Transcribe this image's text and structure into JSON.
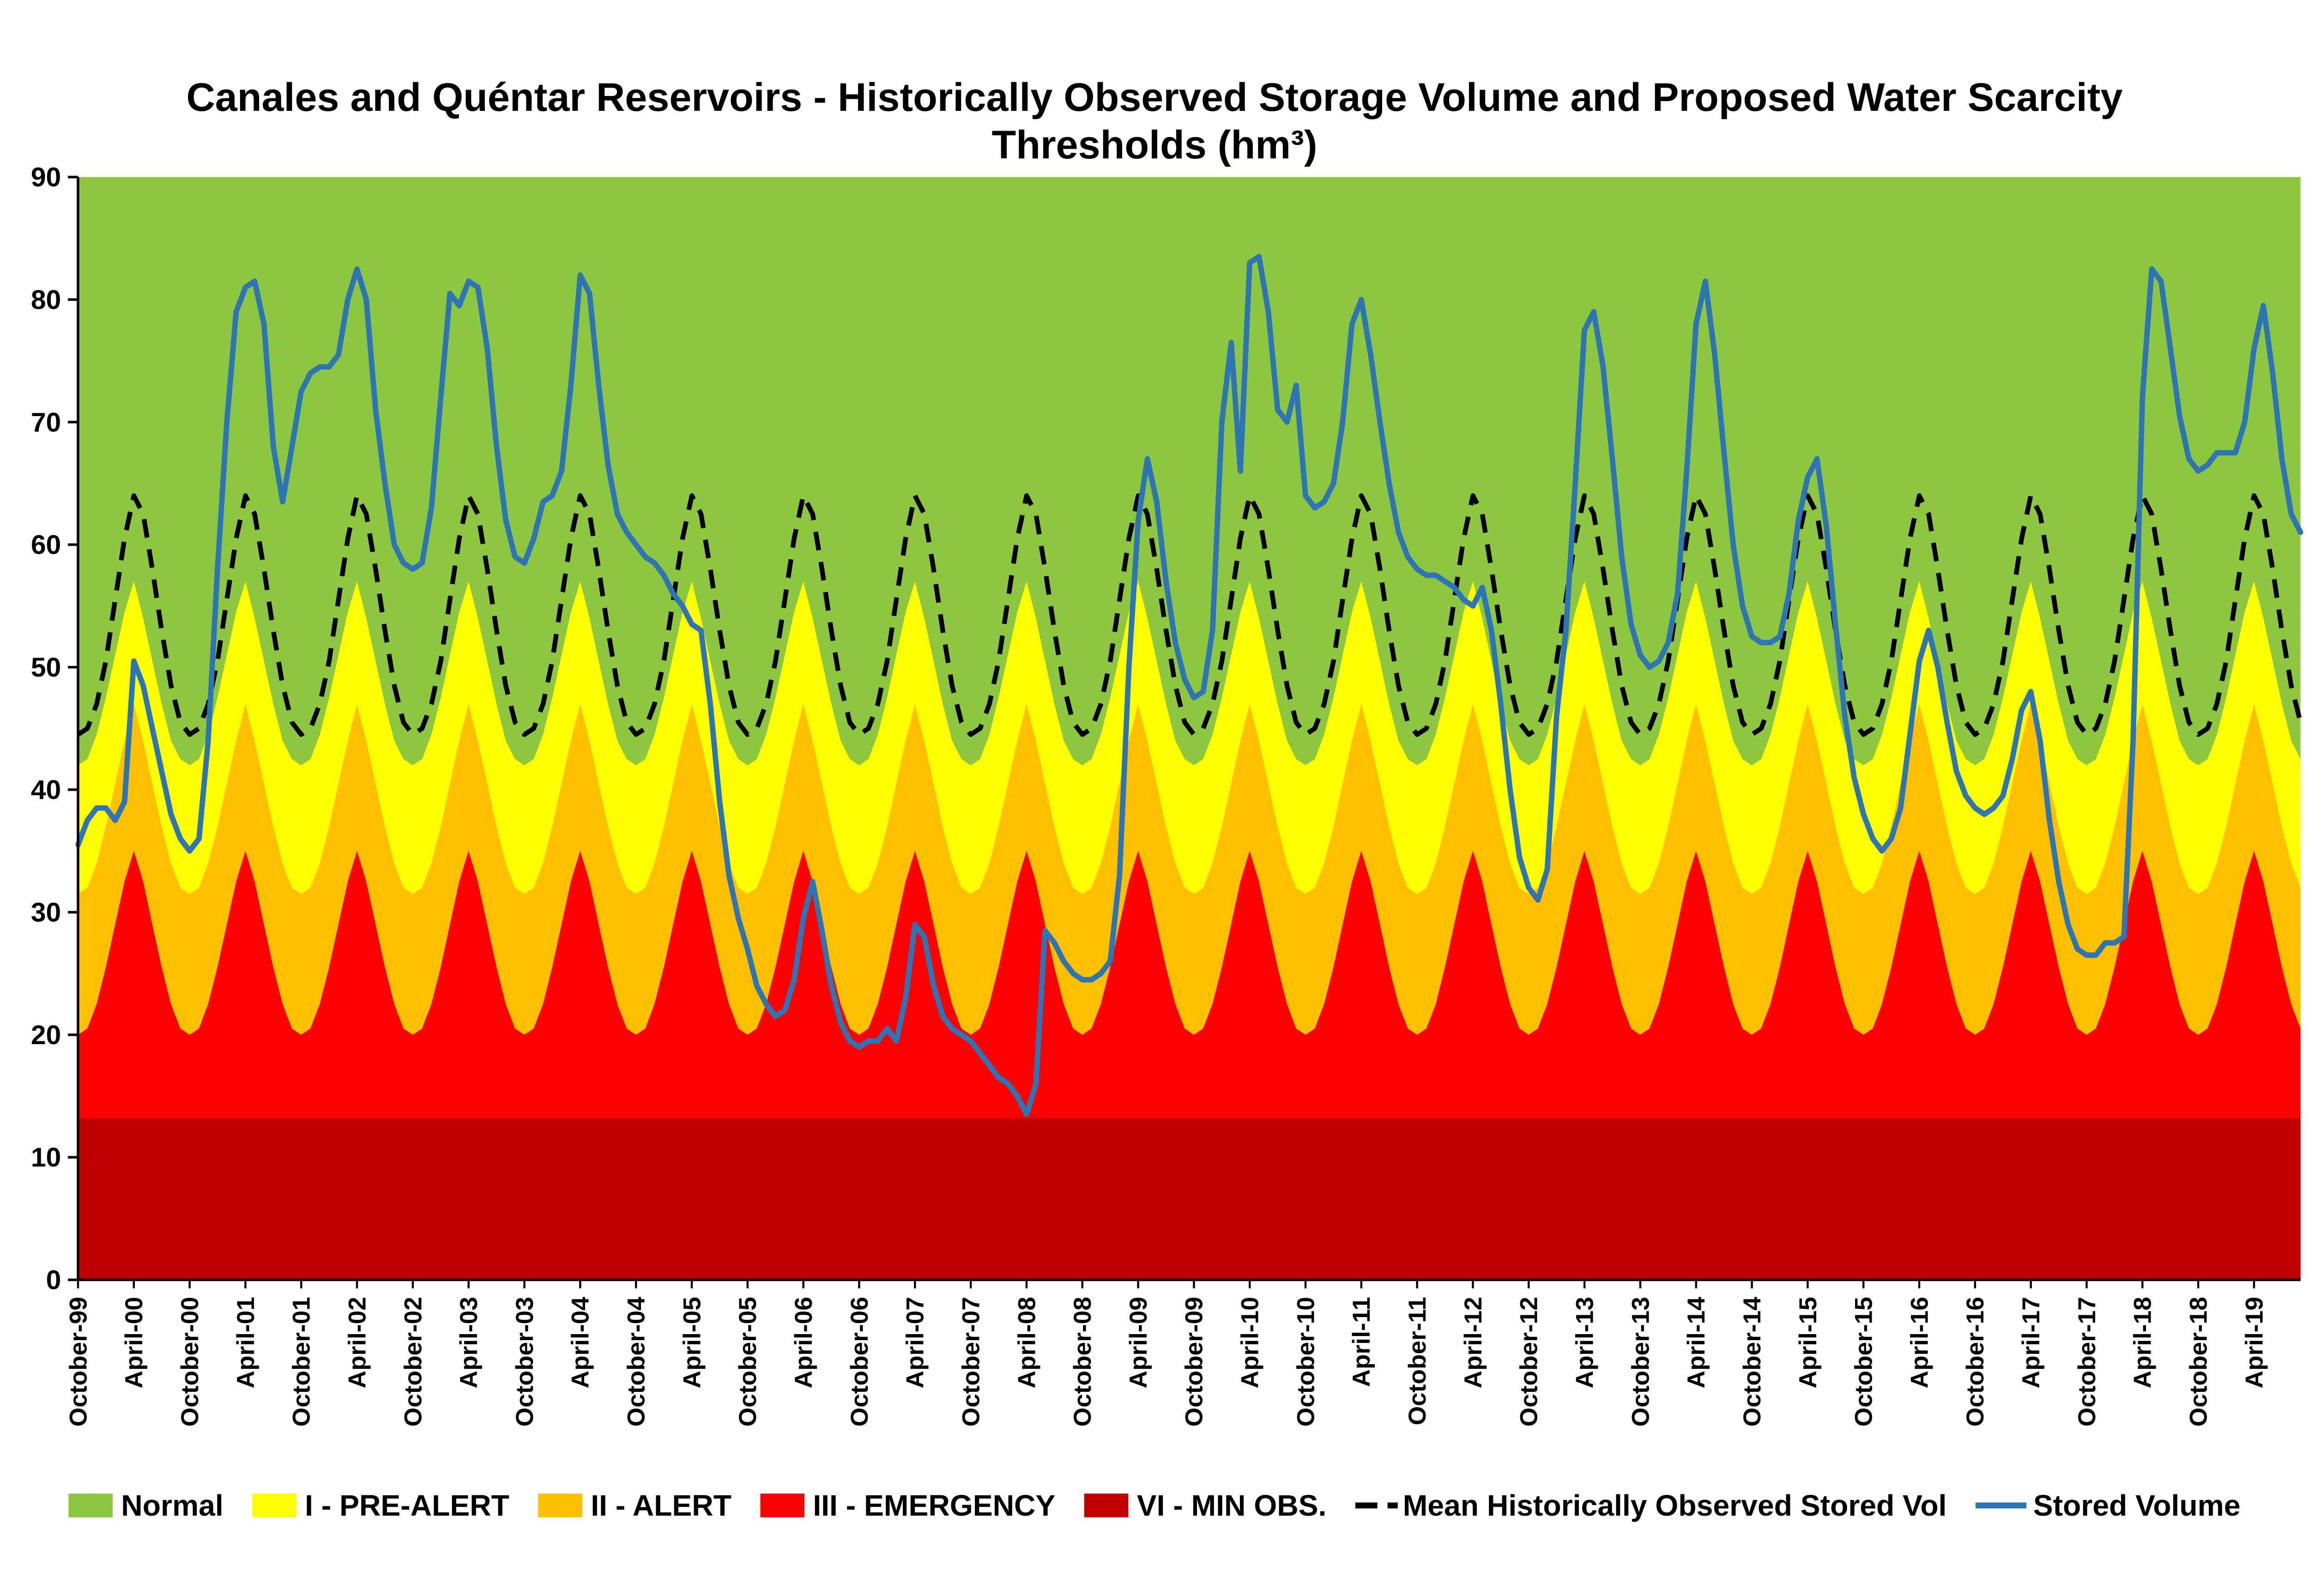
{
  "title": {
    "line1": "Canales and Quéntar Reservoirs - Historically Observed  Storage Volume and Proposed Water Scarcity",
    "line2": "Thresholds (hm³)"
  },
  "chart_data": {
    "type": "area+line",
    "ylim": [
      0,
      90
    ],
    "y_ticks": [
      0,
      10,
      20,
      30,
      40,
      50,
      60,
      70,
      80,
      90
    ],
    "x_start": "October-1999",
    "frequency": "monthly",
    "months_total": 240,
    "x_tick_every": 6,
    "x_tick_labels": [
      "October-99",
      "April-00",
      "October-00",
      "April-01",
      "October-01",
      "April-02",
      "October-02",
      "April-03",
      "October-03",
      "April-04",
      "October-04",
      "April-05",
      "October-05",
      "April-06",
      "October-06",
      "April-07",
      "October-07",
      "April-08",
      "October-08",
      "April-09",
      "October-09",
      "April-10",
      "October-10",
      "April-11",
      "October-11",
      "April-12",
      "October-12",
      "April-13",
      "October-13",
      "April-14",
      "October-14",
      "April-15",
      "October-15",
      "April-16",
      "October-16",
      "April-17",
      "October-17",
      "April-18",
      "October-18",
      "April-19"
    ],
    "zones": {
      "min_obs_level": 13.2,
      "seasonal_cycle_start_month": "October",
      "emergency_top_cycle": [
        20,
        20.5,
        22.5,
        25.5,
        29,
        32.5,
        35,
        32.5,
        29,
        25.5,
        22.5,
        20.5
      ],
      "alert_top_cycle": [
        31.5,
        32,
        34,
        37,
        40.5,
        44,
        47,
        44,
        40.5,
        37,
        34,
        32
      ],
      "prealert_top_cycle": [
        42,
        42.5,
        44.5,
        47.5,
        51,
        54.5,
        57,
        54,
        50.5,
        47,
        44,
        42.5
      ],
      "mean_observed_cycle": [
        44.5,
        45,
        47,
        50.5,
        55.5,
        60.5,
        64,
        62.5,
        58,
        53,
        48.5,
        45.5
      ]
    },
    "stored_volume": [
      35.5,
      37.5,
      38.5,
      38.5,
      37.5,
      39,
      50.5,
      48.5,
      45,
      41.5,
      38,
      36,
      35,
      36,
      44,
      58,
      70,
      79,
      81,
      81.5,
      78,
      68,
      63.5,
      68,
      72.5,
      74,
      74.5,
      74.5,
      75.5,
      80,
      82.5,
      80,
      71,
      65,
      60,
      58.5,
      58,
      58.5,
      63,
      72,
      80.5,
      79.5,
      81.5,
      81,
      76,
      68,
      62,
      59,
      58.5,
      60.5,
      63.5,
      64,
      66,
      73,
      82,
      80.5,
      73,
      66.5,
      62.5,
      61,
      60,
      59,
      58.5,
      57.5,
      56,
      55,
      53.5,
      53,
      47,
      39,
      33,
      29.5,
      27,
      24,
      22.5,
      21.5,
      22,
      24.5,
      29.5,
      32.5,
      28.5,
      24,
      21,
      19.5,
      19,
      19.5,
      19.5,
      20.5,
      19.5,
      23,
      29,
      28,
      24,
      21.5,
      20.5,
      20,
      19.5,
      18.5,
      17.5,
      16.5,
      16,
      15,
      13.5,
      16,
      28.5,
      27.5,
      26,
      25,
      24.5,
      24.5,
      25,
      26,
      33,
      50,
      62,
      67,
      63.5,
      57,
      52,
      49,
      47.5,
      48,
      53,
      70,
      76.5,
      66,
      83,
      83.5,
      79,
      71,
      70,
      73,
      64,
      63,
      63.5,
      65,
      70,
      78,
      80,
      75.5,
      70,
      65,
      61,
      59,
      58,
      57.5,
      57.5,
      57,
      56.5,
      55.5,
      55,
      56.5,
      53,
      47,
      40,
      34.5,
      32,
      31,
      33.5,
      46,
      53,
      65,
      77.5,
      79,
      74.5,
      67,
      59,
      53.5,
      51,
      50,
      50.5,
      52,
      56,
      66,
      78,
      81.5,
      75.5,
      67.5,
      60,
      55,
      52.5,
      52,
      52,
      52.5,
      56,
      62,
      65.5,
      67,
      61.5,
      53.5,
      46,
      41,
      38,
      36,
      35,
      36,
      38.5,
      44.5,
      50.5,
      53,
      50,
      45.5,
      41.5,
      39.5,
      38.5,
      38,
      38.5,
      39.5,
      42.5,
      46.5,
      48,
      44,
      37.5,
      32.5,
      29,
      27,
      26.5,
      26.5,
      27.5,
      27.5,
      28,
      44,
      72,
      82.5,
      81.5,
      76,
      70.5,
      67,
      66,
      66.5,
      67.5,
      67.5,
      67.5,
      70,
      76,
      79.5,
      74,
      67,
      62.5,
      61
    ],
    "colors": {
      "normal": "#8DC63F",
      "prealert": "#FFFF00",
      "alert": "#FFC000",
      "emergency": "#FE0000",
      "min_obs": "#C00000",
      "stored_volume": "#2E75B6",
      "mean_line": "#000000"
    }
  },
  "legend": [
    {
      "label": "Normal",
      "swatch": "normal"
    },
    {
      "label": "I - PRE-ALERT",
      "swatch": "prealert"
    },
    {
      "label": "II - ALERT",
      "swatch": "alert"
    },
    {
      "label": "III - EMERGENCY",
      "swatch": "emergency"
    },
    {
      "label": "VI - MIN OBS.",
      "swatch": "min_obs"
    },
    {
      "label": "Mean Historically Observed Stored Vol",
      "swatch": "mean_line_dash"
    },
    {
      "label": "Stored Volume",
      "swatch": "stored_line"
    }
  ]
}
